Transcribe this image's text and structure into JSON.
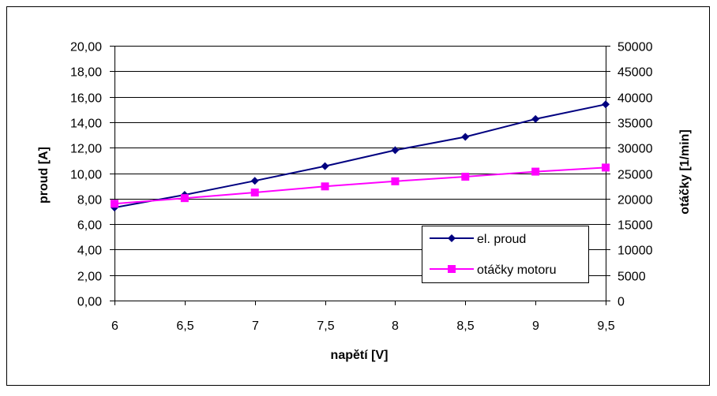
{
  "chart_data": {
    "type": "line",
    "xlabel": "napětí [V]",
    "ylabel": "proud [A]",
    "y2label": "otáčky [1/min]",
    "x": [
      6,
      6.5,
      7,
      7.5,
      8,
      8.5,
      9,
      9.5
    ],
    "x_tick_labels": [
      "6",
      "6,5",
      "7",
      "7,5",
      "8",
      "8,5",
      "9",
      "9,5"
    ],
    "xlim": [
      6,
      9.5
    ],
    "ylim": [
      0,
      20
    ],
    "y_tick_labels": [
      "0,00",
      "2,00",
      "4,00",
      "6,00",
      "8,00",
      "10,00",
      "12,00",
      "14,00",
      "16,00",
      "18,00",
      "20,00"
    ],
    "y2lim": [
      0,
      50000
    ],
    "y2_tick_labels": [
      "0",
      "5000",
      "10000",
      "15000",
      "20000",
      "25000",
      "30000",
      "35000",
      "40000",
      "45000",
      "50000"
    ],
    "grid": "horizontal",
    "legend_position": "lower-right",
    "series": [
      {
        "name": "el. proud",
        "axis": "left",
        "color": "#000080",
        "marker": "diamond",
        "values": [
          7.3,
          8.3,
          9.4,
          10.55,
          11.8,
          12.85,
          14.25,
          15.4
        ]
      },
      {
        "name": "otáčky motoru",
        "axis": "right",
        "color": "#ff00ff",
        "marker": "square",
        "values": [
          19000,
          20100,
          21200,
          22400,
          23400,
          24300,
          25300,
          26100
        ]
      }
    ]
  }
}
